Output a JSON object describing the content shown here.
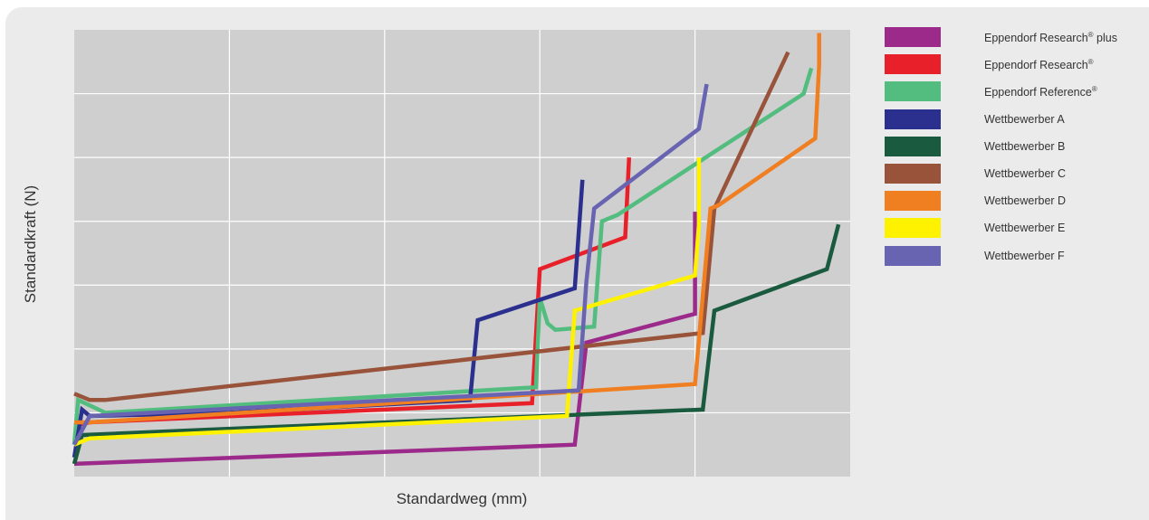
{
  "chart_data": {
    "type": "line",
    "xlabel": "Standardweg (mm)",
    "ylabel": "Standardkraft (N)",
    "xlim": [
      0,
      10
    ],
    "ylim": [
      0,
      7
    ],
    "grid": true,
    "grid_color": "#ffffff",
    "plot_background": "#cfcfcf",
    "legend_position": "right",
    "show_tick_labels": false,
    "series": [
      {
        "name": "Eppendorf Research",
        "mark": "®",
        "suffix": " plus",
        "color": "#9b2a8a",
        "x": [
          0,
          6.45,
          6.6,
          8.0,
          8.0
        ],
        "y": [
          0.2,
          0.5,
          2.1,
          2.55,
          4.15
        ]
      },
      {
        "name": "Eppendorf Research",
        "mark": "®",
        "suffix": "",
        "color": "#e8202a",
        "x": [
          0,
          0.2,
          5.9,
          6.0,
          7.1,
          7.15
        ],
        "y": [
          0.8,
          0.85,
          1.15,
          3.25,
          3.75,
          5.0
        ]
      },
      {
        "name": "Eppendorf Reference",
        "mark": "®",
        "suffix": "",
        "color": "#52bd7f",
        "x": [
          0,
          0.05,
          0.4,
          5.95,
          6.0,
          6.1,
          6.2,
          6.7,
          6.8,
          7.0,
          9.4,
          9.5
        ],
        "y": [
          0.5,
          1.2,
          1.0,
          1.4,
          2.8,
          2.4,
          2.3,
          2.35,
          4.0,
          4.1,
          6.0,
          6.4
        ]
      },
      {
        "name": "Wettbewerber A",
        "mark": "",
        "suffix": "",
        "color": "#2b2f8e",
        "x": [
          0,
          0.1,
          0.2,
          2.0,
          5.1,
          5.2,
          6.45,
          6.55
        ],
        "y": [
          0.3,
          1.05,
          0.95,
          1.0,
          1.2,
          2.45,
          2.95,
          4.65
        ]
      },
      {
        "name": "Wettbewerber B",
        "mark": "",
        "suffix": "",
        "color": "#1a5a3e",
        "x": [
          0,
          0.1,
          2.0,
          8.1,
          8.25,
          9.7,
          9.85
        ],
        "y": [
          0.2,
          0.65,
          0.75,
          1.05,
          2.6,
          3.25,
          3.95
        ]
      },
      {
        "name": "Wettbewerber C",
        "mark": "",
        "suffix": "",
        "color": "#98533a",
        "x": [
          0,
          0.2,
          0.4,
          8.1,
          8.25,
          9.2
        ],
        "y": [
          1.3,
          1.2,
          1.2,
          2.25,
          4.2,
          6.65
        ]
      },
      {
        "name": "Wettbewerber D",
        "mark": "",
        "suffix": "",
        "color": "#f07f22",
        "x": [
          0,
          0.2,
          8.0,
          8.2,
          8.3,
          9.55,
          9.6,
          9.6
        ],
        "y": [
          0.85,
          0.85,
          1.45,
          4.2,
          4.25,
          5.3,
          6.45,
          6.95
        ]
      },
      {
        "name": "Wettbewerber E",
        "mark": "",
        "suffix": "",
        "color": "#fff200",
        "x": [
          0,
          0.2,
          6.35,
          6.45,
          8.0,
          8.05,
          8.05
        ],
        "y": [
          0.5,
          0.6,
          0.95,
          2.6,
          3.15,
          3.95,
          5.0
        ]
      },
      {
        "name": "Wettbewerber F",
        "mark": "",
        "suffix": "",
        "color": "#6864b2",
        "x": [
          0,
          0.2,
          6.5,
          6.6,
          6.7,
          8.05,
          8.15
        ],
        "y": [
          0.5,
          0.95,
          1.35,
          3.05,
          4.2,
          5.45,
          6.15
        ]
      }
    ]
  }
}
